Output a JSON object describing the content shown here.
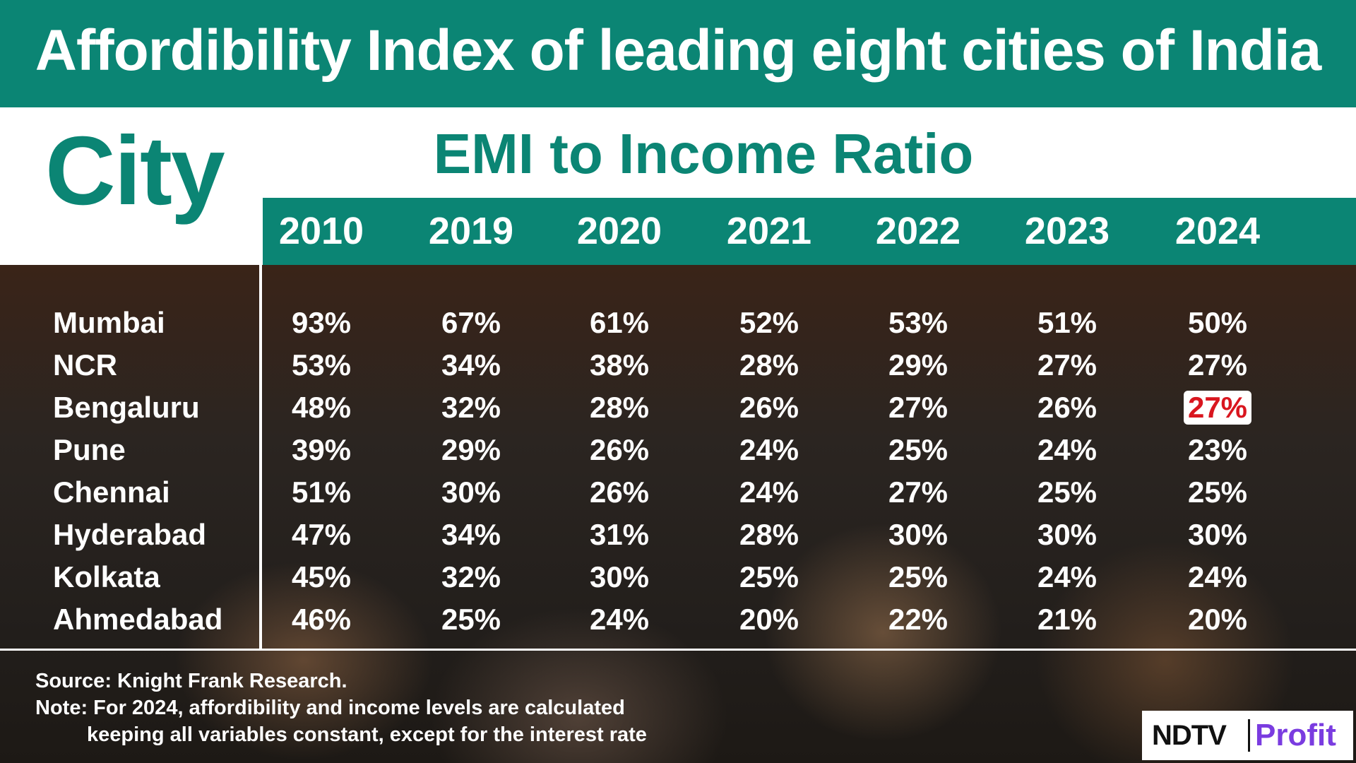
{
  "title": "Affordibility Index of leading eight cities of India",
  "city_header": "City",
  "metric_header": "EMI to Income Ratio",
  "source": "Source: Knight Frank Research.",
  "note_line1": "Note: For 2024, affordibility and income levels are calculated",
  "note_line2": "keeping all variables constant, except for the interest rate",
  "logo": {
    "brand": "NDTV",
    "sub": "Profit"
  },
  "highlight": {
    "city": "Bengaluru",
    "year": "2024",
    "color": "#d9161f"
  },
  "colors": {
    "accent": "#0b8574",
    "highlight": "#d9161f"
  },
  "chart_data": {
    "type": "table",
    "title": "Affordibility Index of leading eight cities of India",
    "columns": [
      "2010",
      "2019",
      "2020",
      "2021",
      "2022",
      "2023",
      "2024"
    ],
    "rows": [
      {
        "city": "Mumbai",
        "values": [
          "93%",
          "67%",
          "61%",
          "52%",
          "53%",
          "51%",
          "50%"
        ]
      },
      {
        "city": "NCR",
        "values": [
          "53%",
          "34%",
          "38%",
          "28%",
          "29%",
          "27%",
          "27%"
        ]
      },
      {
        "city": "Bengaluru",
        "values": [
          "48%",
          "32%",
          "28%",
          "26%",
          "27%",
          "26%",
          "27%"
        ]
      },
      {
        "city": "Pune",
        "values": [
          "39%",
          "29%",
          "26%",
          "24%",
          "25%",
          "24%",
          "23%"
        ]
      },
      {
        "city": "Chennai",
        "values": [
          "51%",
          "30%",
          "26%",
          "24%",
          "27%",
          "25%",
          "25%"
        ]
      },
      {
        "city": "Hyderabad",
        "values": [
          "47%",
          "34%",
          "31%",
          "28%",
          "30%",
          "30%",
          "30%"
        ]
      },
      {
        "city": "Kolkata",
        "values": [
          "45%",
          "32%",
          "30%",
          "25%",
          "25%",
          "24%",
          "24%"
        ]
      },
      {
        "city": "Ahmedabad",
        "values": [
          "46%",
          "25%",
          "24%",
          "20%",
          "22%",
          "21%",
          "20%"
        ]
      }
    ]
  }
}
